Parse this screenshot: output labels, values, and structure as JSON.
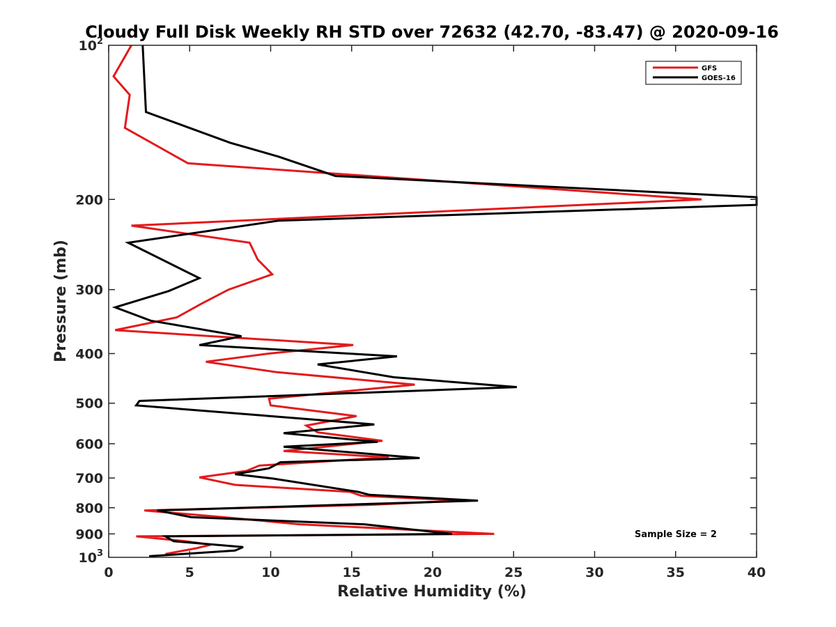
{
  "chart_data": {
    "type": "line",
    "title": "Cloudy Full Disk Weekly RH STD over 72632 (42.70, -83.47) @ 2020-09-16",
    "xlabel": "Relative Humidity (%)",
    "ylabel": "Pressure (mb)",
    "xlim": [
      0,
      40
    ],
    "ylim": [
      100,
      1000
    ],
    "y_scale": "log",
    "y_reversed": true,
    "x_ticks": [
      0,
      5,
      10,
      15,
      20,
      25,
      30,
      35,
      40
    ],
    "x_tick_labels": [
      "0",
      "5",
      "10",
      "15",
      "20",
      "25",
      "30",
      "35",
      "40"
    ],
    "y_ticks": [
      200,
      300,
      400,
      500,
      600,
      700,
      800,
      900
    ],
    "y_tick_labels": [
      "200",
      "300",
      "400",
      "500",
      "600",
      "700",
      "800",
      "900"
    ],
    "y_tick_top": {
      "base": "10",
      "exp": "2"
    },
    "y_tick_bottom": {
      "base": "10",
      "exp": "3"
    },
    "grid": false,
    "legend_position": "top-right",
    "annotation": "Sample Size = 2",
    "series": [
      {
        "name": "GFS",
        "color": "#e31a1c",
        "points": [
          [
            1.4,
            100
          ],
          [
            0.3,
            115
          ],
          [
            1.3,
            125
          ],
          [
            1.0,
            145
          ],
          [
            4.9,
            170
          ],
          [
            36.6,
            200
          ],
          [
            1.4,
            225
          ],
          [
            8.7,
            243
          ],
          [
            9.2,
            262
          ],
          [
            10.1,
            280
          ],
          [
            7.4,
            300
          ],
          [
            5.7,
            320
          ],
          [
            4.2,
            340
          ],
          [
            0.4,
            360
          ],
          [
            15.1,
            385
          ],
          [
            9.9,
            400
          ],
          [
            6.0,
            415
          ],
          [
            10.4,
            435
          ],
          [
            18.9,
            460
          ],
          [
            9.9,
            490
          ],
          [
            10.0,
            505
          ],
          [
            15.3,
            530
          ],
          [
            12.2,
            553
          ],
          [
            12.9,
            570
          ],
          [
            16.9,
            592
          ],
          [
            10.8,
            620
          ],
          [
            17.3,
            638
          ],
          [
            9.3,
            662
          ],
          [
            8.5,
            678
          ],
          [
            5.6,
            698
          ],
          [
            7.8,
            722
          ],
          [
            14.9,
            745
          ],
          [
            15.6,
            758
          ],
          [
            21.8,
            775
          ],
          [
            16.0,
            790
          ],
          [
            2.2,
            810
          ],
          [
            7.5,
            837
          ],
          [
            11.8,
            862
          ],
          [
            23.8,
            900
          ],
          [
            1.7,
            910
          ],
          [
            4.7,
            930
          ],
          [
            6.3,
            945
          ],
          [
            5.4,
            960
          ],
          [
            3.5,
            985
          ]
        ]
      },
      {
        "name": "GOES-16",
        "color": "#000000",
        "points": [
          [
            2.1,
            100
          ],
          [
            2.3,
            135
          ],
          [
            7.5,
            155
          ],
          [
            10.5,
            165
          ],
          [
            14.0,
            180
          ],
          [
            40.0,
            198
          ],
          [
            40.0,
            205
          ],
          [
            10.5,
            220
          ],
          [
            1.2,
            243
          ],
          [
            5.6,
            285
          ],
          [
            3.7,
            302
          ],
          [
            0.4,
            325
          ],
          [
            2.6,
            345
          ],
          [
            8.2,
            370
          ],
          [
            5.6,
            385
          ],
          [
            17.8,
            405
          ],
          [
            12.9,
            420
          ],
          [
            17.6,
            445
          ],
          [
            25.2,
            465
          ],
          [
            1.9,
            495
          ],
          [
            1.7,
            505
          ],
          [
            16.4,
            550
          ],
          [
            10.8,
            572
          ],
          [
            16.6,
            595
          ],
          [
            10.8,
            608
          ],
          [
            19.2,
            640
          ],
          [
            10.6,
            652
          ],
          [
            9.9,
            670
          ],
          [
            7.8,
            688
          ],
          [
            10.2,
            702
          ],
          [
            15.4,
            745
          ],
          [
            16.1,
            755
          ],
          [
            22.8,
            775
          ],
          [
            3.0,
            810
          ],
          [
            5.1,
            835
          ],
          [
            15.8,
            862
          ],
          [
            21.2,
            900
          ],
          [
            3.5,
            910
          ],
          [
            4.0,
            930
          ],
          [
            8.3,
            955
          ],
          [
            7.8,
            970
          ],
          [
            2.5,
            995
          ]
        ]
      }
    ]
  }
}
